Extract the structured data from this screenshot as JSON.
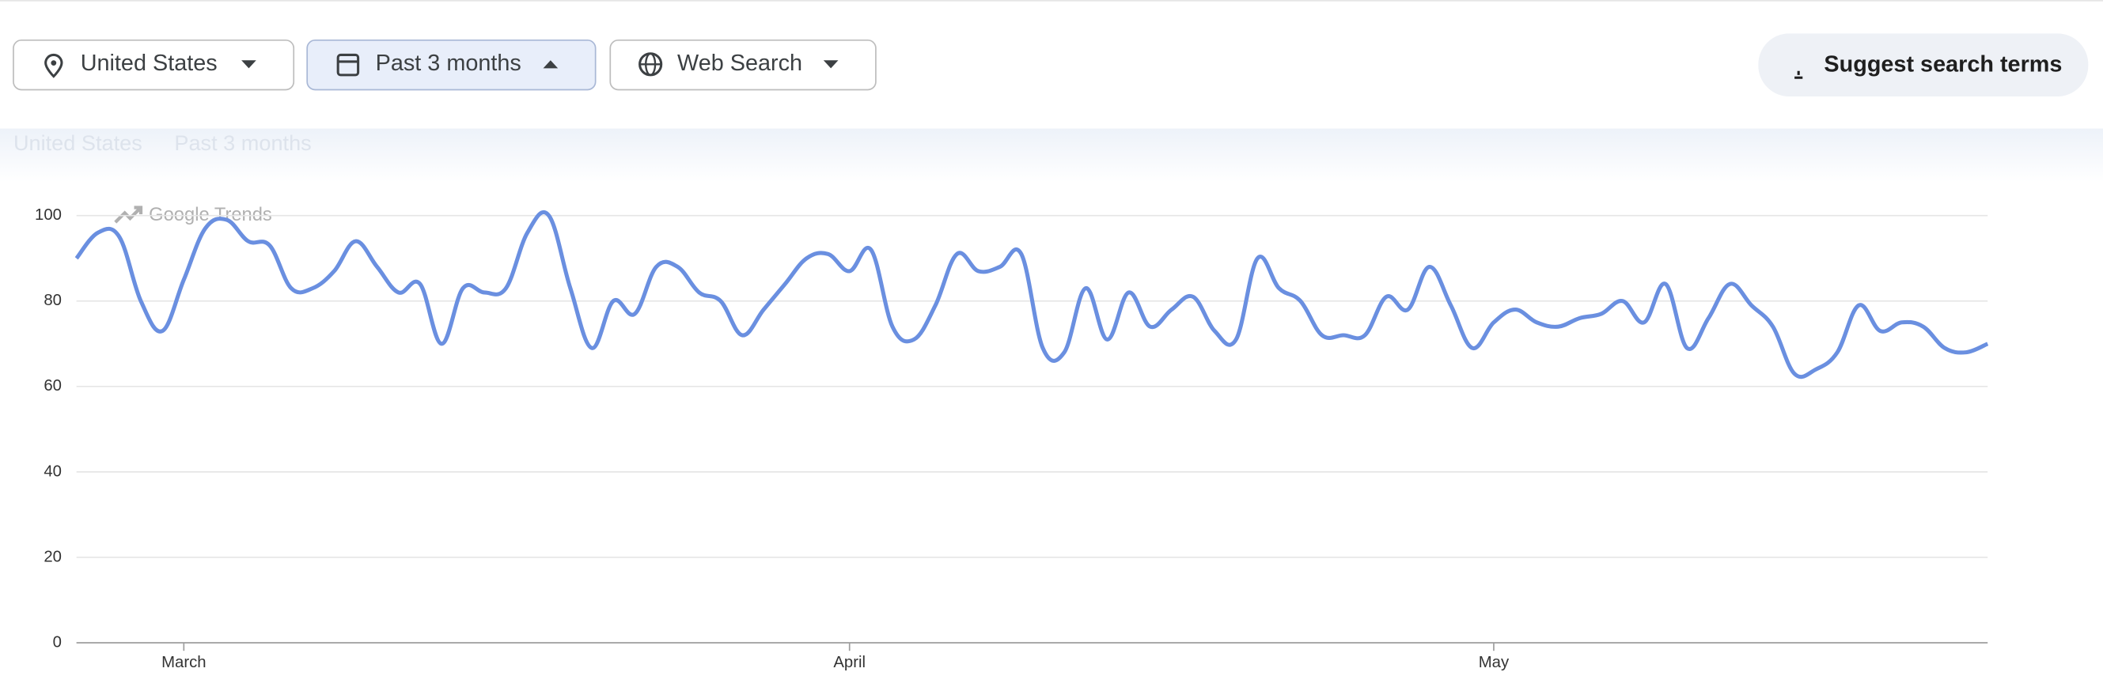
{
  "toolbar": {
    "filters": [
      "United States",
      "Past 3 months",
      "Web Search"
    ],
    "suggest": "Suggest search terms"
  },
  "subheader": [
    "United States",
    "Past 3 months"
  ],
  "chart_data": {
    "type": "line",
    "watermark": "Google Trends",
    "categories": [
      null,
      null,
      null,
      null,
      null,
      "March",
      null,
      null,
      null,
      null,
      null,
      null,
      null,
      null,
      null,
      null,
      null,
      null,
      null,
      null,
      null,
      null,
      null,
      null,
      null,
      null,
      null,
      null,
      null,
      null,
      null,
      null,
      null,
      null,
      null,
      null,
      "April",
      null,
      null,
      null,
      null,
      null,
      null,
      null,
      null,
      null,
      null,
      null,
      null,
      null,
      null,
      null,
      null,
      null,
      null,
      null,
      null,
      null,
      null,
      null,
      null,
      null,
      null,
      null,
      null,
      null,
      "May",
      null,
      null,
      null,
      null,
      null,
      null,
      null,
      null,
      null,
      null,
      null,
      null,
      null,
      null,
      null,
      null,
      null,
      null,
      null,
      null,
      null,
      null,
      null
    ],
    "values": [
      90,
      96,
      95,
      80,
      73,
      85,
      97,
      99,
      94,
      93,
      83,
      83,
      87,
      94,
      88,
      82,
      84,
      70,
      83,
      82,
      83,
      96,
      100,
      83,
      69,
      80,
      77,
      88,
      88,
      82,
      80,
      72,
      78,
      84,
      90,
      91,
      87,
      92,
      74,
      71,
      79,
      91,
      87,
      88,
      91,
      69,
      68,
      83,
      71,
      82,
      74,
      78,
      81,
      73,
      71,
      90,
      83,
      80,
      72,
      72,
      72,
      81,
      78,
      88,
      79,
      69,
      75,
      78,
      75,
      74,
      76,
      77,
      80,
      75,
      84,
      69,
      76,
      84,
      79,
      74,
      63,
      64,
      68,
      79,
      73,
      75,
      74,
      69,
      68,
      70
    ],
    "color": "#6a8fe0",
    "ylim": [
      0,
      100
    ],
    "yticks": [
      0,
      20,
      40,
      60,
      80,
      100
    ],
    "grid": true
  }
}
